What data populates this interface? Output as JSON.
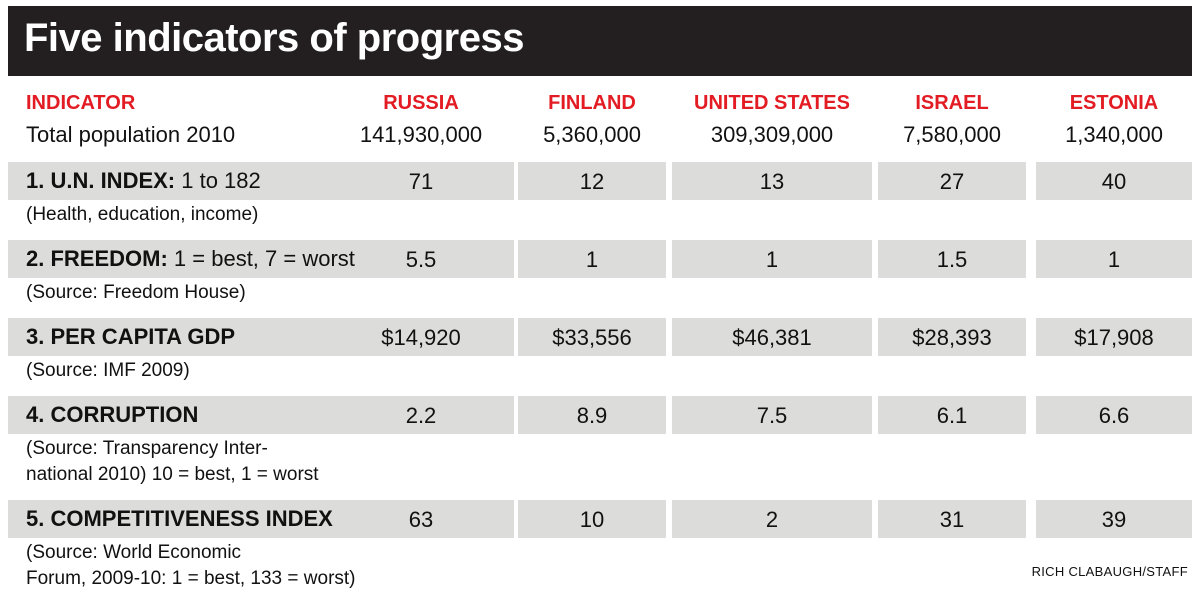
{
  "title": "Five indicators of progress",
  "chart_data": {
    "type": "table",
    "header": {
      "indicator": "INDICATOR",
      "countries": [
        "RUSSIA",
        "FINLAND",
        "UNITED STATES",
        "ISRAEL",
        "ESTONIA"
      ]
    },
    "population": {
      "label": "Total population 2010",
      "values": [
        "141,930,000",
        "5,360,000",
        "309,309,000",
        "7,580,000",
        "1,340,000"
      ]
    },
    "rows": [
      {
        "label": "1. U.N. INDEX:",
        "scale": "1 to 182",
        "note_lines": [
          "(Health, education, income)"
        ],
        "values": [
          "71",
          "12",
          "13",
          "27",
          "40"
        ]
      },
      {
        "label": "2. FREEDOM:",
        "scale": "1 = best, 7 = worst",
        "note_lines": [
          "(Source: Freedom House)"
        ],
        "values": [
          "5.5",
          "1",
          "1",
          "1.5",
          "1"
        ]
      },
      {
        "label": "3. PER CAPITA GDP",
        "scale": "",
        "note_lines": [
          "(Source: IMF 2009)"
        ],
        "values": [
          "$14,920",
          "$33,556",
          "$46,381",
          "$28,393",
          "$17,908"
        ]
      },
      {
        "label": "4. CORRUPTION",
        "scale": "",
        "note_lines": [
          "(Source: Transparency Inter-",
          "national 2010) 10 = best, 1 = worst"
        ],
        "values": [
          "2.2",
          "8.9",
          "7.5",
          "6.1",
          "6.6"
        ]
      },
      {
        "label": "5. COMPETITIVENESS INDEX",
        "scale": "",
        "note_lines": [
          "(Source: World Economic",
          "Forum, 2009-10: 1 = best, 133 = worst)"
        ],
        "values": [
          "63",
          "10",
          "2",
          "31",
          "39"
        ]
      }
    ]
  },
  "credit": "RICH CLABAUGH/STAFF",
  "colors": {
    "title_bg": "#231f20",
    "title_text": "#ffffff",
    "header_red": "#e31b23",
    "band_gray": "#dcdcda"
  }
}
